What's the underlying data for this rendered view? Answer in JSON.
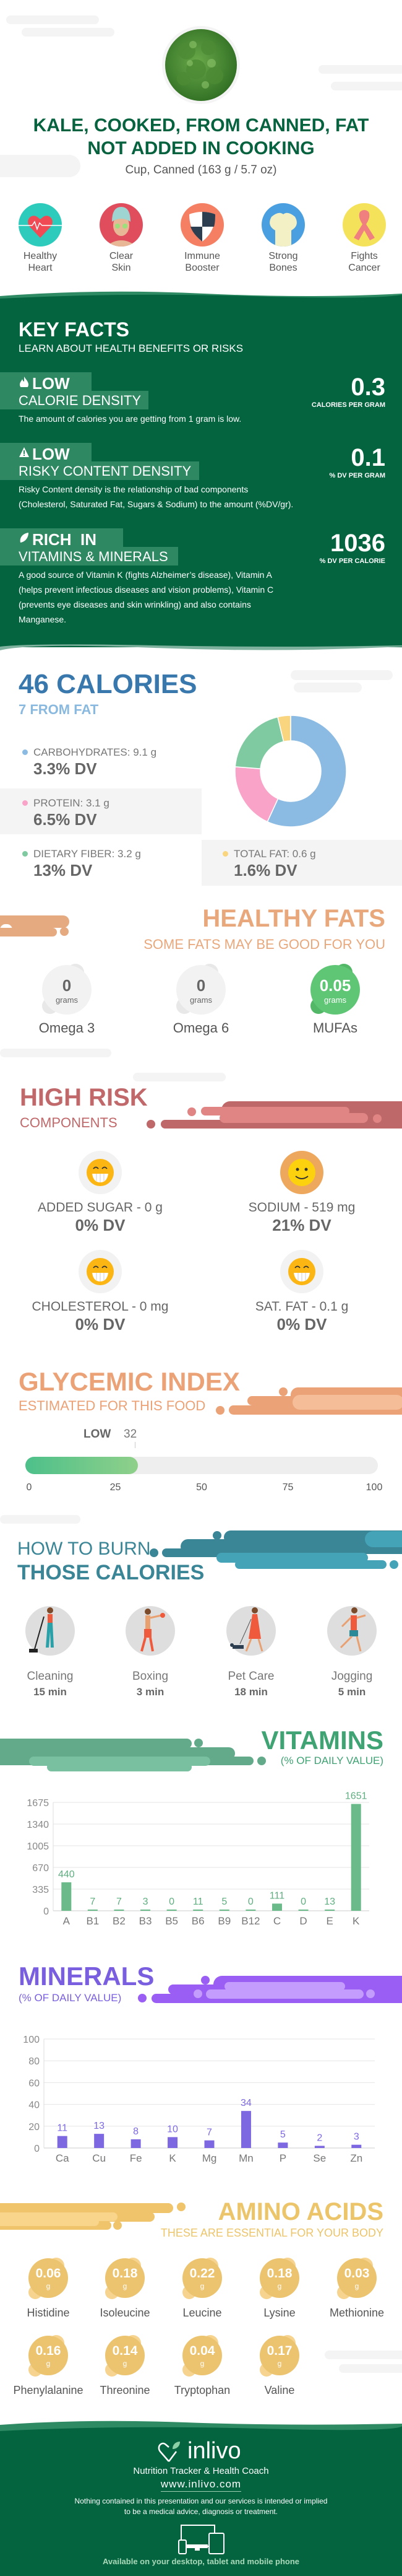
{
  "header": {
    "title_line1": "KALE, COOKED, FROM CANNED, FAT",
    "title_line2": "NOT ADDED IN COOKING",
    "serving": "Cup, Canned (163 g / 5.7 oz)"
  },
  "benefits": [
    {
      "line1": "Healthy",
      "line2": "Heart",
      "icon": "heart-icon",
      "color": "#2ccbbb"
    },
    {
      "line1": "Clear",
      "line2": "Skin",
      "icon": "face-mask-icon",
      "color": "#e04e5e"
    },
    {
      "line1": "Immune",
      "line2": "Booster",
      "icon": "shield-icon",
      "color": "#f57f62"
    },
    {
      "line1": "Strong",
      "line2": "Bones",
      "icon": "bone-icon",
      "color": "#4a9fe0"
    },
    {
      "line1": "Fights",
      "line2": "Cancer",
      "icon": "ribbon-icon",
      "color": "#f4e35a"
    }
  ],
  "key_facts": {
    "title": "KEY FACTS",
    "subtitle": "LEARN ABOUT HEALTH BENEFITS OR RISKS",
    "items": [
      {
        "level": "LOW",
        "label": "CALORIE DENSITY",
        "value": "0.3",
        "unit": "CALORIES PER GRAM",
        "icon": "flame-icon",
        "desc": [
          "The amount of calories you are getting from 1 gram is low."
        ]
      },
      {
        "level": "LOW",
        "label": "RISKY CONTENT DENSITY",
        "value": "0.1",
        "unit": "% DV PER GRAM",
        "icon": "warning-icon",
        "desc": [
          "Risky Content density is the relationship of bad components",
          "(Cholesterol, Saturated Fat, Sugars & Sodium) to the amount (%DV/gr)."
        ]
      },
      {
        "level": "RICH  IN",
        "label": "VITAMINS & MINERALS",
        "value": "1036",
        "unit": "% DV PER CALORIE",
        "icon": "leaf-icon",
        "desc": [
          "A good source of Vitamin K (fights Alzheimer’s disease), Vitamin A",
          "(helps prevent infectious diseases and vision problems), Vitamin C",
          "(prevents eye diseases and skin wrinkling) and also contains",
          "Manganese."
        ]
      }
    ]
  },
  "calories": {
    "title": "46 CALORIES",
    "subtitle": "7 FROM FAT",
    "macros": [
      {
        "label": "CARBOHYDRATES: 9.1 g",
        "dv": "3.3% DV",
        "grams": 9.1,
        "color": "#8bbbe2"
      },
      {
        "label": "PROTEIN: 3.1 g",
        "dv": "6.5% DV",
        "grams": 3.1,
        "color": "#f9a3c8"
      },
      {
        "label": "DIETARY FIBER: 3.2 g",
        "dv": "13% DV",
        "grams": 3.2,
        "color": "#7fcaa0"
      },
      {
        "label": "TOTAL FAT: 0.6 g",
        "dv": "1.6% DV",
        "grams": 0.6,
        "color": "#f8d57e"
      }
    ]
  },
  "healthy_fats": {
    "title": "HEALTHY FATS",
    "subtitle": "SOME FATS MAY BE GOOD FOR YOU",
    "unit": "grams",
    "items": [
      {
        "name": "Omega 3",
        "value": "0",
        "highlight": false
      },
      {
        "name": "Omega 6",
        "value": "0",
        "highlight": false
      },
      {
        "name": "MUFAs",
        "value": "0.05",
        "highlight": true
      }
    ]
  },
  "high_risk": {
    "title": "HIGH RISK",
    "subtitle": "COMPONENTS",
    "items": [
      {
        "label": "ADDED SUGAR - 0 g",
        "dv": "0% DV",
        "face": "grin-face-icon"
      },
      {
        "label": "SODIUM - 519 mg",
        "dv": "21% DV",
        "face": "smile-face-icon"
      },
      {
        "label": "CHOLESTEROL - 0 mg",
        "dv": "0% DV",
        "face": "grin-face-icon"
      },
      {
        "label": "SAT. FAT - 0.1 g",
        "dv": "0% DV",
        "face": "grin-face-icon"
      }
    ]
  },
  "glycemic": {
    "title": "GLYCEMIC INDEX",
    "subtitle": "ESTIMATED FOR THIS FOOD",
    "level": "LOW",
    "value": 32,
    "value_label": "32",
    "ticks": [
      "0",
      "25",
      "50",
      "75",
      "100"
    ]
  },
  "burn": {
    "title_line1": "HOW TO BURN",
    "title_line2": "THOSE CALORIES",
    "activities": [
      {
        "name": "Cleaning",
        "time": "15 min",
        "icon": "cleaning-person-icon"
      },
      {
        "name": "Boxing",
        "time": "3 min",
        "icon": "boxer-icon"
      },
      {
        "name": "Pet Care",
        "time": "18 min",
        "icon": "dog-walker-icon"
      },
      {
        "name": "Jogging",
        "time": "5 min",
        "icon": "jogger-icon"
      }
    ]
  },
  "chart_data": [
    {
      "type": "bar",
      "title": "VITAMINS",
      "subtitle": "(% OF DAILY VALUE)",
      "categories": [
        "A",
        "B1",
        "B2",
        "B3",
        "B5",
        "B6",
        "B9",
        "B12",
        "C",
        "D",
        "E",
        "K"
      ],
      "values": [
        440,
        7,
        7,
        3,
        0,
        11,
        5,
        0,
        111,
        0,
        13,
        1651
      ],
      "yticks": [
        0,
        335,
        670,
        1005,
        1340,
        1675
      ],
      "ylim": [
        0,
        1675
      ],
      "grid": true,
      "color": "#6bbb8a"
    },
    {
      "type": "bar",
      "title": "MINERALS",
      "subtitle": "(% OF DAILY VALUE)",
      "categories": [
        "Ca",
        "Cu",
        "Fe",
        "K",
        "Mg",
        "Mn",
        "P",
        "Se",
        "Zn"
      ],
      "values": [
        11,
        13,
        8,
        10,
        7,
        34,
        5,
        2,
        3
      ],
      "yticks": [
        0,
        20,
        40,
        60,
        80,
        100
      ],
      "ylim": [
        0,
        100
      ],
      "grid": true,
      "color": "#7e68e2"
    }
  ],
  "amino": {
    "title": "AMINO ACIDS",
    "subtitle": "THESE ARE ESSENTIAL FOR YOUR BODY",
    "unit": "g",
    "items": [
      {
        "name": "Histidine",
        "value": "0.06"
      },
      {
        "name": "Isoleucine",
        "value": "0.18"
      },
      {
        "name": "Leucine",
        "value": "0.22"
      },
      {
        "name": "Lysine",
        "value": "0.18"
      },
      {
        "name": "Methionine",
        "value": "0.03"
      },
      {
        "name": "Phenylalanine",
        "value": "0.16"
      },
      {
        "name": "Threonine",
        "value": "0.14"
      },
      {
        "name": "Tryptophan",
        "value": "0.04"
      },
      {
        "name": "Valine",
        "value": "0.17"
      }
    ]
  },
  "footer": {
    "brand": "inlivo",
    "tagline": "Nutrition Tracker & Health Coach",
    "url": "www.inlivo.com",
    "disclaimer_line1": "Nothing contained in this presentation and our services is intended or implied",
    "disclaimer_line2": "to be a medical advice, diagnosis or treatment.",
    "available": "Available on your desktop, tablet and mobile phone"
  }
}
